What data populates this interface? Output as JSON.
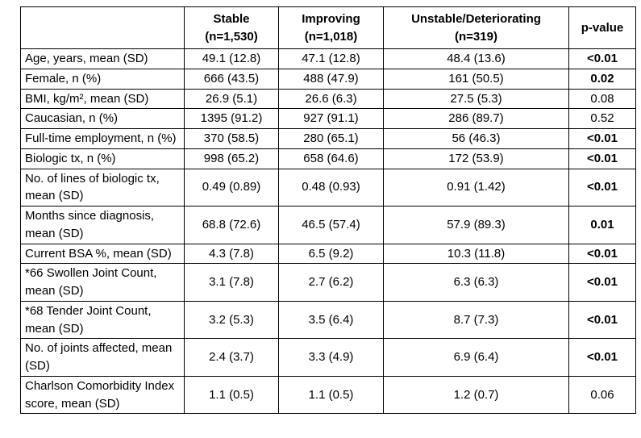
{
  "table": {
    "colors": {
      "border": "#000000",
      "text": "#000000",
      "background": "#ffffff"
    },
    "header": {
      "corner": "",
      "cols": [
        {
          "line1": "Stable",
          "line2": "(n=1,530)"
        },
        {
          "line1": "Improving",
          "line2": "(n=1,018)"
        },
        {
          "line1": "Unstable/Deteriorating",
          "line2": "(n=319)"
        },
        {
          "line1": "p-value",
          "line2": ""
        }
      ]
    },
    "rows": [
      {
        "label": "Age, years, mean (SD)",
        "stable": "49.1 (12.8)",
        "improving": "47.1 (12.8)",
        "unstable": "48.4 (13.6)",
        "p": "<0.01",
        "p_bold": true
      },
      {
        "label": "Female, n (%)",
        "stable": "666 (43.5)",
        "improving": "488 (47.9)",
        "unstable": "161 (50.5)",
        "p": "0.02",
        "p_bold": true
      },
      {
        "label": "BMI, kg/m², mean (SD)",
        "stable": "26.9 (5.1)",
        "improving": "26.6 (6.3)",
        "unstable": "27.5 (5.3)",
        "p": "0.08",
        "p_bold": false
      },
      {
        "label": "Caucasian, n (%)",
        "stable": "1395 (91.2)",
        "improving": "927 (91.1)",
        "unstable": "286 (89.7)",
        "p": "0.52",
        "p_bold": false
      },
      {
        "label": "Full-time employment, n (%)",
        "stable": "370 (58.5)",
        "improving": "280 (65.1)",
        "unstable": "56 (46.3)",
        "p": "<0.01",
        "p_bold": true
      },
      {
        "label": "Biologic tx, n (%)",
        "stable": "998 (65.2)",
        "improving": "658 (64.6)",
        "unstable": "172 (53.9)",
        "p": "<0.01",
        "p_bold": true
      },
      {
        "label": "No. of lines of biologic tx, mean (SD)",
        "stable": "0.49 (0.89)",
        "improving": "0.48 (0.93)",
        "unstable": "0.91 (1.42)",
        "p": "<0.01",
        "p_bold": true
      },
      {
        "label": "Months since diagnosis, mean (SD)",
        "stable": "68.8 (72.6)",
        "improving": "46.5 (57.4)",
        "unstable": "57.9 (89.3)",
        "p": "0.01",
        "p_bold": true
      },
      {
        "label": "Current BSA %, mean (SD)",
        "stable": "4.3 (7.8)",
        "improving": "6.5 (9.2)",
        "unstable": "10.3 (11.8)",
        "p": "<0.01",
        "p_bold": true
      },
      {
        "label": "*66 Swollen Joint Count, mean (SD)",
        "stable": "3.1 (7.8)",
        "improving": "2.7 (6.2)",
        "unstable": "6.3 (6.3)",
        "p": "<0.01",
        "p_bold": true
      },
      {
        "label": "*68 Tender Joint Count, mean (SD)",
        "stable": "3.2 (5.3)",
        "improving": "3.5 (6.4)",
        "unstable": "8.7 (7.3)",
        "p": "<0.01",
        "p_bold": true
      },
      {
        "label": "No. of joints affected, mean (SD)",
        "stable": "2.4 (3.7)",
        "improving": "3.3 (4.9)",
        "unstable": "6.9 (6.4)",
        "p": "<0.01",
        "p_bold": true
      },
      {
        "label": "Charlson Comorbidity Index score, mean (SD)",
        "stable": "1.1 (0.5)",
        "improving": "1.1 (0.5)",
        "unstable": "1.2 (0.7)",
        "p": "0.06",
        "p_bold": false
      }
    ]
  }
}
